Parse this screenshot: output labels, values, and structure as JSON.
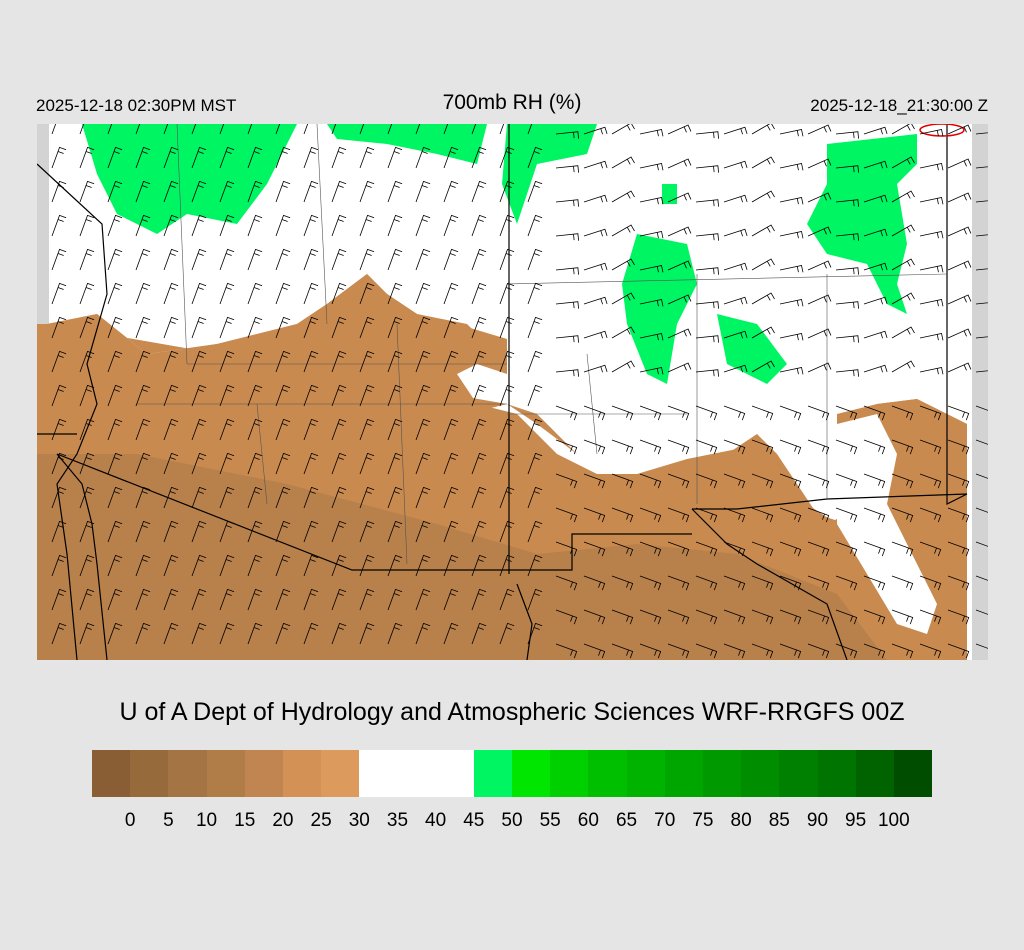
{
  "header": {
    "local_time": "2025-12-18 02:30PM MST",
    "title": "700mb RH (%)",
    "valid_time": "2025-12-18_21:30:00 Z"
  },
  "credit": "U of A Dept of Hydrology and Atmospheric Sciences WRF-RRGFS 00Z",
  "colorbar": {
    "labels": [
      "0",
      "5",
      "10",
      "15",
      "20",
      "25",
      "30",
      "35",
      "40",
      "45",
      "50",
      "55",
      "60",
      "65",
      "70",
      "75",
      "80",
      "85",
      "90",
      "95",
      "100"
    ],
    "colors": [
      "#8a5e35",
      "#976a3c",
      "#a57444",
      "#b07c48",
      "#c08550",
      "#d39155",
      "#dc9a5c",
      "#ffffff",
      "#ffffff",
      "#ffffff",
      "#00f562",
      "#00e600",
      "#00d000",
      "#00bf00",
      "#00b300",
      "#00a600",
      "#009a00",
      "#008e00",
      "#008000",
      "#007400",
      "#006300",
      "#004d00"
    ]
  },
  "map": {
    "field": "700mb relative humidity (%) with wind barbs",
    "region": "Southwestern United States and northern Mexico",
    "dry_color": "#c98a50",
    "moist_color": "#00f562",
    "background_color": "#ffffff",
    "outside_domain_color": "#d3d3d3"
  }
}
